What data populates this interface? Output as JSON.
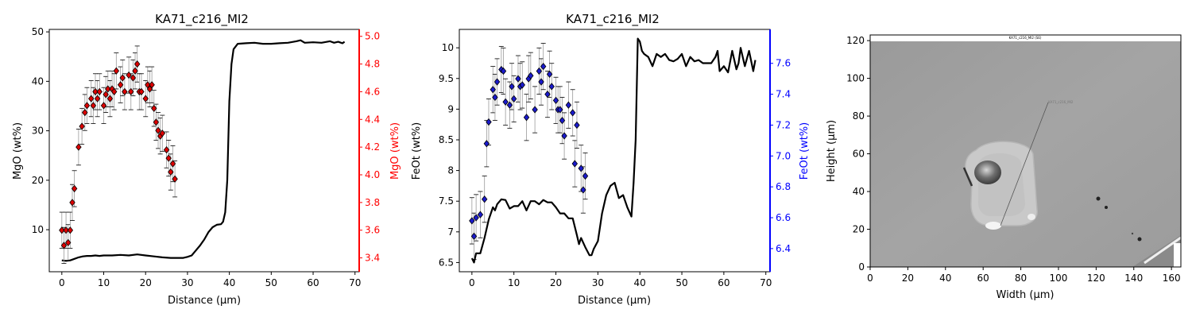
{
  "chart_data": [
    {
      "type": "line",
      "title": "KA71_c216_MI2",
      "xlabel": "Distance (µm)",
      "ylabel": "MgO (wt%)",
      "ylabel_right": "MgO (wt%)",
      "xlim": [
        -3,
        71
      ],
      "ylim": [
        1.5,
        50.5
      ],
      "ylim_right": [
        3.3,
        5.05
      ],
      "xticks": [
        0,
        10,
        20,
        30,
        40,
        50,
        60,
        70
      ],
      "yticks": [
        10,
        20,
        30,
        40,
        50
      ],
      "yticks_right": [
        3.4,
        3.6,
        3.8,
        4.0,
        4.2,
        4.4,
        4.6,
        4.8,
        5.0
      ],
      "right_axis_color": "#ff0000",
      "series": [
        {
          "axis": "left",
          "style": "line",
          "color": "#000000",
          "x": [
            0,
            1,
            2,
            3,
            4,
            5,
            6,
            7,
            8,
            9,
            10,
            12,
            14,
            16,
            18,
            20,
            22,
            24,
            26,
            28,
            29,
            30,
            31,
            32,
            33,
            34,
            35,
            36,
            37,
            38,
            38.5,
            39,
            39.5,
            40,
            40.5,
            41,
            42,
            44,
            46,
            48,
            50,
            52,
            54,
            56,
            57,
            58,
            60,
            62,
            64,
            65,
            66,
            67,
            67.5
          ],
          "y": [
            3.8,
            3.7,
            3.8,
            4.1,
            4.4,
            4.6,
            4.7,
            4.7,
            4.8,
            4.7,
            4.8,
            4.8,
            4.9,
            4.8,
            5.0,
            4.8,
            4.6,
            4.4,
            4.3,
            4.3,
            4.3,
            4.5,
            4.8,
            5.8,
            6.8,
            8.0,
            9.5,
            10.5,
            11.0,
            11.1,
            11.6,
            13.5,
            20.0,
            36.0,
            43.5,
            46.5,
            47.6,
            47.7,
            47.8,
            47.6,
            47.6,
            47.7,
            47.8,
            48.1,
            48.3,
            47.8,
            47.9,
            47.8,
            48.1,
            47.8,
            48.0,
            47.7,
            48.0
          ]
        },
        {
          "axis": "right",
          "style": "markers",
          "marker": "diamond",
          "color": "#dd0000",
          "x": [
            0,
            0.5,
            1,
            1.5,
            2,
            2.5,
            3,
            4,
            4.8,
            5.5,
            6,
            7,
            7.5,
            8,
            8.5,
            9,
            10,
            10.5,
            11,
            11.5,
            12,
            12.5,
            13,
            14,
            14.5,
            15,
            16,
            16.5,
            17,
            17.5,
            18,
            18.5,
            19,
            20,
            20.5,
            21,
            21.5,
            22,
            22.5,
            23,
            23.5,
            24,
            25,
            25.5,
            26,
            26.5,
            27
          ],
          "y": [
            3.6,
            3.49,
            3.6,
            3.51,
            3.6,
            3.8,
            3.9,
            4.2,
            4.35,
            4.45,
            4.5,
            4.55,
            4.5,
            4.6,
            4.55,
            4.6,
            4.5,
            4.58,
            4.62,
            4.55,
            4.62,
            4.6,
            4.75,
            4.65,
            4.7,
            4.6,
            4.72,
            4.6,
            4.7,
            4.75,
            4.8,
            4.6,
            4.6,
            4.55,
            4.65,
            4.62,
            4.65,
            4.48,
            4.38,
            4.32,
            4.28,
            4.3,
            4.18,
            4.12,
            4.02,
            4.08,
            3.97
          ],
          "yerr": 0.13
        }
      ]
    },
    {
      "type": "line",
      "title": "KA71_c216_MI2",
      "xlabel": "Distance (µm)",
      "ylabel": "FeOt (wt%)",
      "ylabel_right": "FeOt (wt%)",
      "xlim": [
        -3,
        71
      ],
      "ylim": [
        6.35,
        10.3
      ],
      "ylim_right": [
        6.25,
        7.82
      ],
      "xticks": [
        0,
        10,
        20,
        30,
        40,
        50,
        60,
        70
      ],
      "yticks": [
        6.5,
        7.0,
        7.5,
        8.0,
        8.5,
        9.0,
        9.5,
        10.0
      ],
      "yticks_right": [
        6.4,
        6.6,
        6.8,
        7.0,
        7.2,
        7.4,
        7.6
      ],
      "right_axis_color": "#0000ff",
      "series": [
        {
          "axis": "left",
          "style": "line",
          "color": "#000000",
          "x": [
            0,
            0.5,
            1,
            2,
            3,
            4,
            5,
            5.5,
            6,
            7,
            8,
            9,
            10,
            11,
            12,
            13,
            14,
            15,
            16,
            17,
            18,
            19,
            20,
            21,
            22,
            23,
            24,
            25,
            25.5,
            26,
            27,
            28,
            28.5,
            29,
            30,
            31,
            32,
            33,
            34,
            35,
            36,
            37,
            38,
            38.5,
            39,
            39.5,
            40,
            40.5,
            41,
            42,
            43,
            44,
            45,
            46,
            47,
            48,
            49,
            50,
            51,
            52,
            53,
            54,
            55,
            56,
            57,
            58,
            58.5,
            59,
            60,
            61,
            62,
            63,
            63.5,
            64,
            65,
            66,
            67,
            67.5
          ],
          "y": [
            6.57,
            6.5,
            6.65,
            6.65,
            6.9,
            7.2,
            7.4,
            7.35,
            7.45,
            7.53,
            7.52,
            7.38,
            7.42,
            7.42,
            7.5,
            7.35,
            7.5,
            7.5,
            7.45,
            7.52,
            7.48,
            7.48,
            7.4,
            7.3,
            7.3,
            7.22,
            7.22,
            6.95,
            6.8,
            6.9,
            6.75,
            6.62,
            6.62,
            6.72,
            6.85,
            7.3,
            7.6,
            7.75,
            7.8,
            7.55,
            7.6,
            7.4,
            7.25,
            7.8,
            8.5,
            10.15,
            10.1,
            9.95,
            9.9,
            9.85,
            9.7,
            9.9,
            9.85,
            9.9,
            9.8,
            9.78,
            9.82,
            9.9,
            9.7,
            9.85,
            9.78,
            9.8,
            9.75,
            9.75,
            9.75,
            9.85,
            9.95,
            9.62,
            9.7,
            9.6,
            9.95,
            9.65,
            9.75,
            10.0,
            9.7,
            9.95,
            9.62,
            9.8
          ]
        },
        {
          "axis": "right",
          "style": "markers",
          "marker": "diamond",
          "color": "#1a1acc",
          "x": [
            0,
            0.5,
            1,
            2,
            3,
            3.5,
            4,
            5,
            5.5,
            6,
            7,
            7.5,
            8,
            9,
            9.5,
            10,
            11,
            11.5,
            12,
            13,
            13.5,
            14,
            15,
            16,
            16.5,
            17,
            18,
            18.5,
            19,
            20,
            20.5,
            21,
            21.5,
            22,
            23,
            24,
            24.5,
            25,
            26,
            26.5,
            27
          ],
          "y": [
            6.58,
            6.48,
            6.6,
            6.62,
            6.72,
            7.08,
            7.22,
            7.43,
            7.38,
            7.48,
            7.56,
            7.55,
            7.35,
            7.33,
            7.45,
            7.37,
            7.5,
            7.45,
            7.46,
            7.25,
            7.5,
            7.52,
            7.3,
            7.55,
            7.48,
            7.58,
            7.4,
            7.53,
            7.45,
            7.36,
            7.3,
            7.3,
            7.23,
            7.13,
            7.33,
            7.28,
            6.95,
            7.2,
            6.92,
            6.78,
            6.87
          ],
          "yerr": 0.15
        }
      ]
    },
    {
      "type": "image",
      "xlabel": "Width (µm)",
      "ylabel": "Height (µm)",
      "xlim": [
        0,
        165
      ],
      "ylim": [
        0,
        123
      ],
      "xticks": [
        0,
        20,
        40,
        60,
        80,
        100,
        120,
        140,
        160
      ],
      "yticks": [
        0,
        20,
        40,
        60,
        80,
        100,
        120
      ],
      "image_caption": "KA71_c216_MI2 (SE)",
      "line_label": "KA71_c216_MI2"
    }
  ]
}
